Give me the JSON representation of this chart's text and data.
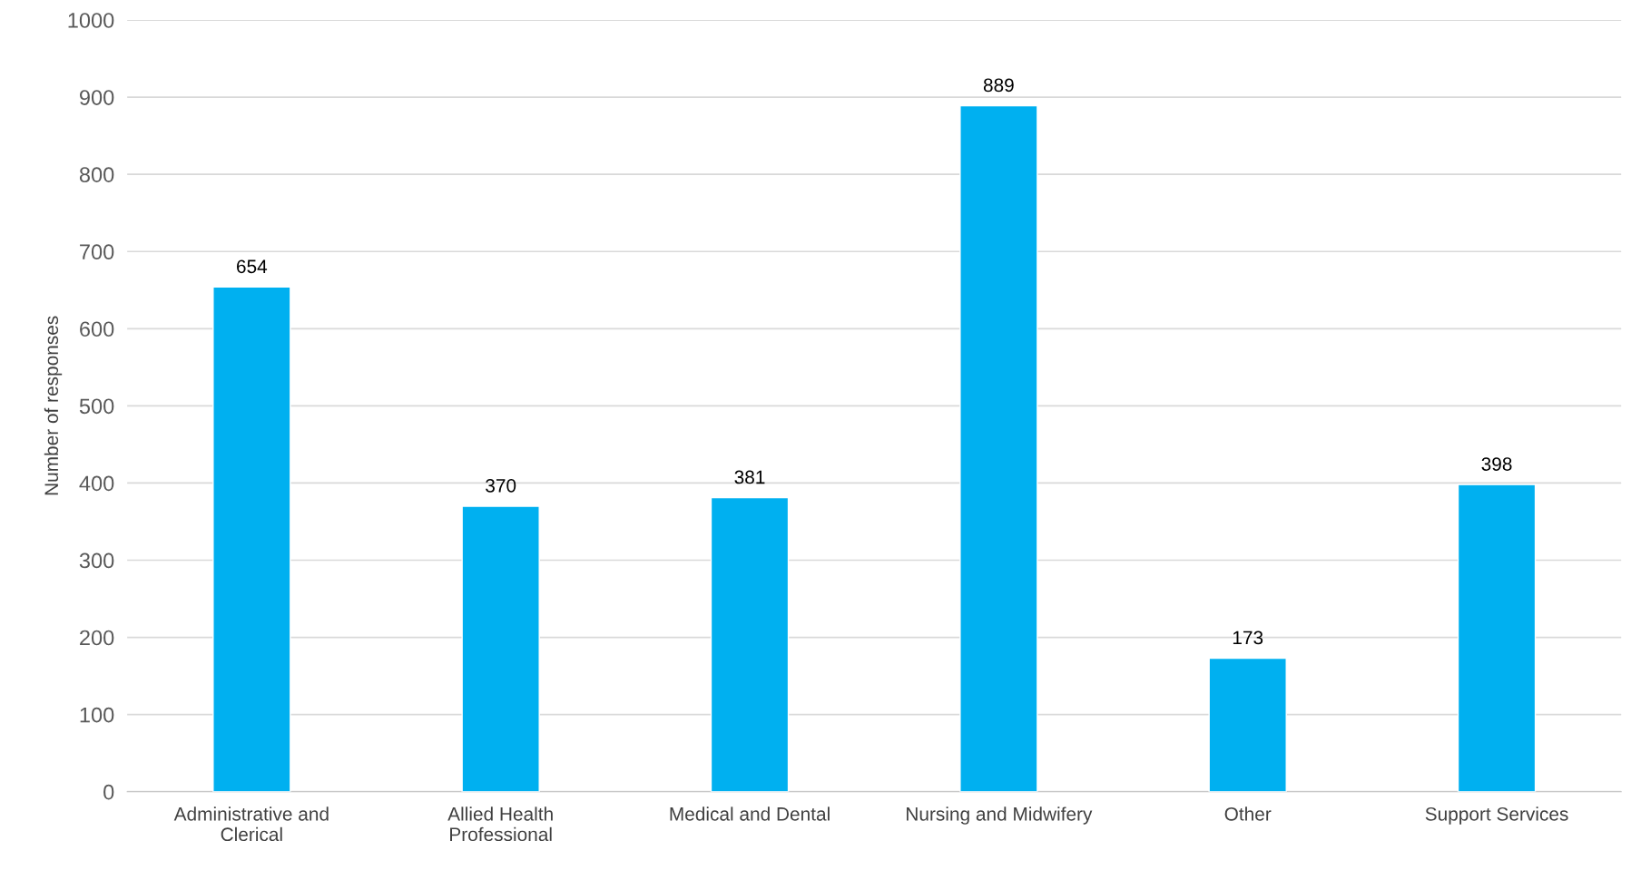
{
  "chart_data": {
    "type": "bar",
    "ylabel": "Number of responses",
    "categories": [
      "Administrative and\nClerical",
      "Allied Health\nProfessional",
      "Medical and Dental",
      "Nursing and Midwifery",
      "Other",
      "Support Services"
    ],
    "values": [
      654,
      370,
      381,
      889,
      173,
      398
    ],
    "color": "#00b0f0",
    "ylim": [
      0,
      1000
    ],
    "yticks": [
      0,
      100,
      200,
      300,
      400,
      500,
      600,
      700,
      800,
      900,
      1000
    ],
    "grid": "y",
    "data_labels": true,
    "legend": false
  }
}
